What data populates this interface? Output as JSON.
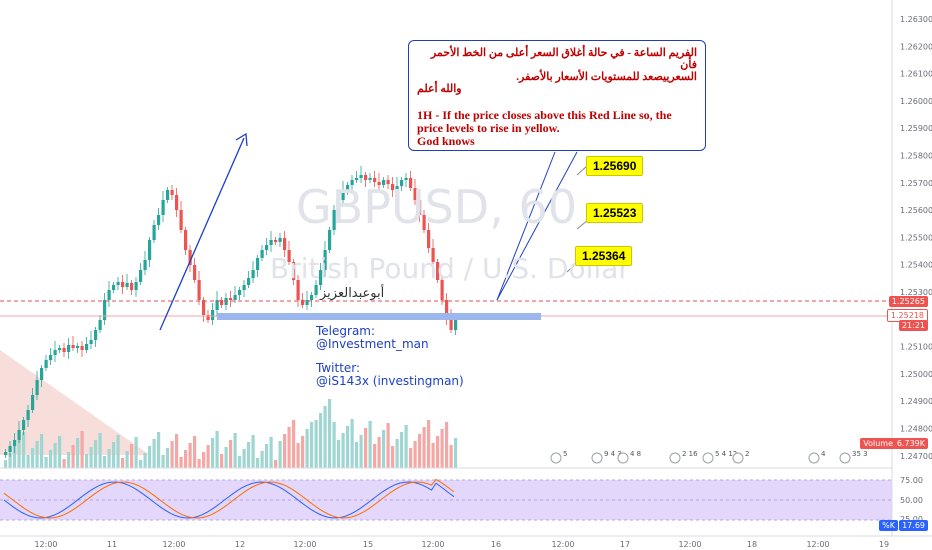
{
  "symbol_watermark": "GBPUSD, 60",
  "pair_watermark": "British Pound / U.S. Dollar",
  "note": {
    "arabic_line1": "الفريم الساعة - في حالة أغلاق السعر أعلى من الخط الأحمر فأن",
    "arabic_line2": "السعرييصعد للمستويات الأسعار بالأصفر.",
    "arabic_line3": "والله أعلم",
    "english_line1": "1H - If the price closes above this Red Line so, the",
    "english_line2": "price levels to rise in yellow.",
    "english_line3": "God knows"
  },
  "targets": [
    "1.25690",
    "1.25523",
    "1.25364"
  ],
  "author_arabic": "أبوعبدالعزيز",
  "contacts": {
    "telegram_label": "Telegram:",
    "telegram_handle": "@Investment_man",
    "twitter_label": "Twitter:",
    "twitter_handle": "@iS143x (investingman)"
  },
  "price_axis": [
    "1.26300",
    "1.26200",
    "1.26100",
    "1.26000",
    "1.25900",
    "1.25800",
    "1.25700",
    "1.25600",
    "1.25500",
    "1.25400",
    "1.25300",
    "1.25100",
    "1.25000",
    "1.24900",
    "1.24800",
    "1.24700"
  ],
  "price_labels": {
    "red_line": "1.25265",
    "current": "1.25218",
    "countdown": "21:21",
    "volume": "Volume",
    "volume_value": "6.739K"
  },
  "oscillator_axis": [
    "75.00",
    "50.00",
    "25.00"
  ],
  "oscillator_badges": {
    "k": "%K",
    "value": "17.69"
  },
  "time_axis": [
    "12:00",
    "11",
    "12:00",
    "12",
    "12:00",
    "15",
    "12:00",
    "16",
    "12:00",
    "17",
    "12:00",
    "18",
    "12:00",
    "19"
  ],
  "event_markers": [
    "5",
    "9 4 3",
    "4 8",
    "2 16",
    "5 4 12",
    "2",
    "4",
    "35 3"
  ],
  "colors": {
    "up": "#26a69a",
    "down": "#ef5350",
    "zone": "#9bb7ee",
    "osc_bg": "#e3d7fb",
    "arrow": "#1e40c8",
    "tag": "#ffff00"
  }
}
